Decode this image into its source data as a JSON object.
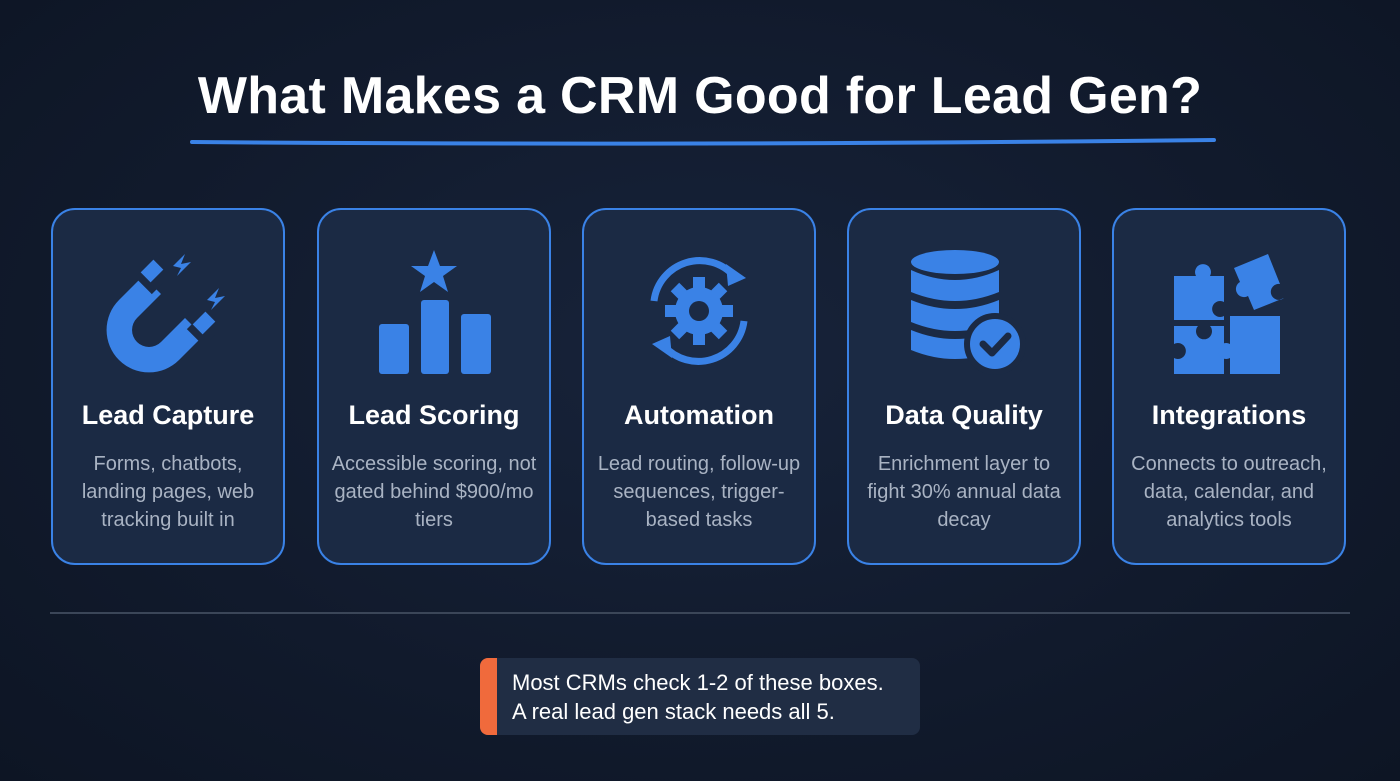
{
  "title": "What Makes a CRM Good for Lead Gen?",
  "colors": {
    "accent": "#3a82e6",
    "callout_bar": "#f06a3c",
    "background": "#111a2c",
    "card": "#1b2a44"
  },
  "cards": [
    {
      "icon": "magnet-icon",
      "title": "Lead Capture",
      "description": "Forms, chatbots, landing pages, web tracking built in"
    },
    {
      "icon": "bar-chart-star-icon",
      "title": "Lead Scoring",
      "description": "Accessible scoring, not gated behind $900/mo tiers"
    },
    {
      "icon": "gear-cycle-icon",
      "title": "Automation",
      "description": "Lead routing, follow-up sequences, trigger-based tasks"
    },
    {
      "icon": "database-check-icon",
      "title": "Data Quality",
      "description": "Enrichment layer to fight 30% annual data decay"
    },
    {
      "icon": "puzzle-icon",
      "title": "Integrations",
      "description": "Connects to outreach, data, calendar, and analytics tools"
    }
  ],
  "callout": {
    "line1": "Most CRMs check 1-2 of these boxes.",
    "line2": "A real lead gen stack needs all 5."
  }
}
